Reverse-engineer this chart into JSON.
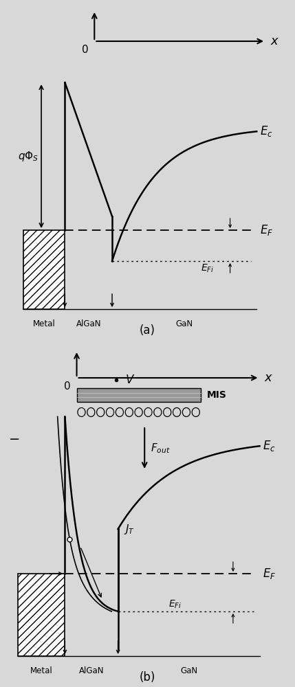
{
  "bg_color": "#d8d8d8",
  "line_color": "#000000",
  "fig_width": 4.29,
  "fig_height": 10.0,
  "dpi": 100,
  "panel_a_label": "(a)",
  "panel_b_label": "(b)",
  "Ec_label": "$E_c$",
  "EF_label": "$E_F$",
  "EFi_label": "$E_{Fi}$",
  "qPhi_label": "$q\\Phi_S$",
  "V_label": "$V$",
  "Fout_label": "$F_{out}$",
  "JT_label": "$J_T$",
  "MIS_label": "MIS",
  "x_label": "$x$",
  "metal_label": "Metal",
  "AlGaN_label": "AlGaN",
  "GaN_label": "GaN",
  "zero_label": "0",
  "minus_label": "−"
}
